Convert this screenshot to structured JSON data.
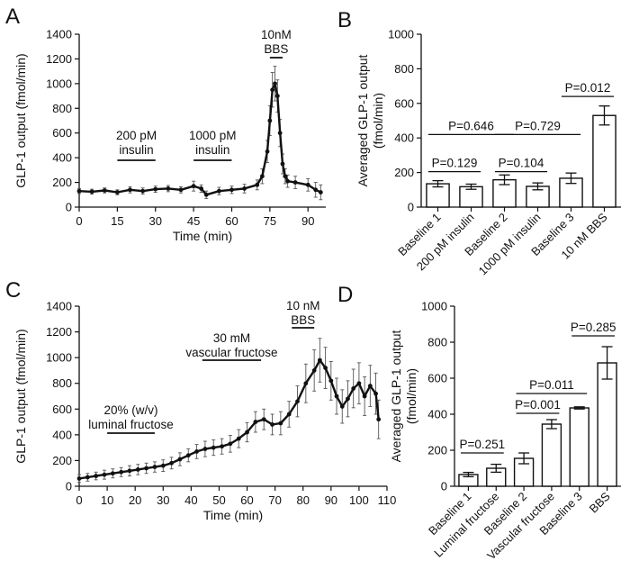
{
  "chart_data": [
    {
      "panel": "A",
      "type": "line",
      "xlabel": "Time (min)",
      "ylabel": "GLP-1 output (fmol/min)",
      "xlim": [
        0,
        97
      ],
      "ylim": [
        0,
        1400
      ],
      "xticks": [
        0,
        15,
        30,
        45,
        60,
        75,
        90
      ],
      "yticks": [
        0,
        200,
        400,
        600,
        800,
        1000,
        1200,
        1400
      ],
      "annotations": [
        {
          "lines": [
            "200 pM",
            "insulin"
          ],
          "x_range": [
            15,
            30
          ]
        },
        {
          "lines": [
            "1000 pM",
            "insulin"
          ],
          "x_range": [
            45,
            60
          ]
        },
        {
          "lines": [
            "10nM",
            "BBS"
          ],
          "x_range": [
            75,
            80
          ]
        }
      ],
      "series": [
        {
          "x": [
            0,
            5,
            10,
            15,
            20,
            25,
            30,
            35,
            40,
            45,
            48,
            50,
            55,
            60,
            65,
            70,
            72,
            74,
            75,
            76,
            77,
            78,
            79,
            80,
            81,
            82,
            85,
            90,
            93,
            95
          ],
          "y": [
            130,
            125,
            135,
            120,
            140,
            130,
            145,
            150,
            140,
            170,
            150,
            100,
            130,
            140,
            150,
            180,
            250,
            450,
            700,
            950,
            1000,
            900,
            600,
            350,
            250,
            210,
            200,
            180,
            140,
            120
          ],
          "error": [
            20,
            20,
            20,
            20,
            25,
            25,
            25,
            25,
            25,
            40,
            30,
            30,
            30,
            30,
            35,
            40,
            60,
            90,
            120,
            140,
            140,
            130,
            110,
            80,
            60,
            50,
            50,
            50,
            60,
            60
          ]
        }
      ]
    },
    {
      "panel": "B",
      "type": "bar",
      "ylabel": "Averaged GLP-1 output (fmol/min)",
      "ylim": [
        0,
        1000
      ],
      "yticks": [
        0,
        200,
        400,
        600,
        800,
        1000
      ],
      "categories": [
        "Baseline 1",
        "200 pM insulin",
        "Baseline 2",
        "1000 pM insulin",
        "Baseline 3",
        "10 nM BBS"
      ],
      "values": [
        135,
        118,
        158,
        120,
        167,
        530
      ],
      "errors": [
        18,
        15,
        28,
        20,
        30,
        55
      ],
      "comparisons": [
        {
          "label": "P=0.129",
          "from": 0,
          "to": 1,
          "y": 205
        },
        {
          "label": "P=0.646",
          "from": 0,
          "to": 2,
          "y": 420
        },
        {
          "label": "P=0.104",
          "from": 2,
          "to": 3,
          "y": 205
        },
        {
          "label": "P=0.729",
          "from": 2,
          "to": 4,
          "y": 420
        },
        {
          "label": "P=0.012",
          "from": 4,
          "to": 5,
          "y": 640
        }
      ]
    },
    {
      "panel": "C",
      "type": "line",
      "xlabel": "Time (min)",
      "ylabel": "GLP-1 output (fmol/min)",
      "xlim": [
        0,
        110
      ],
      "ylim": [
        0,
        1400
      ],
      "xticks": [
        0,
        10,
        20,
        30,
        40,
        50,
        60,
        70,
        80,
        90,
        100,
        110
      ],
      "yticks": [
        0,
        200,
        400,
        600,
        800,
        1000,
        1200,
        1400
      ],
      "annotations": [
        {
          "lines": [
            "20% (w/v)",
            "luminal fructose"
          ],
          "x_range": [
            10,
            27
          ]
        },
        {
          "lines": [
            "30 mM",
            "vascular fructose"
          ],
          "x_range": [
            44,
            65
          ]
        },
        {
          "lines": [
            "10 nM",
            "BBS"
          ],
          "x_range": [
            76,
            84
          ]
        }
      ],
      "series": [
        {
          "x": [
            0,
            3,
            6,
            9,
            12,
            15,
            18,
            21,
            24,
            27,
            30,
            33,
            36,
            39,
            42,
            45,
            48,
            51,
            54,
            57,
            60,
            63,
            66,
            69,
            72,
            75,
            78,
            81,
            84,
            86,
            88,
            90,
            92,
            94,
            96,
            98,
            100,
            102,
            104,
            106,
            107
          ],
          "y": [
            60,
            70,
            80,
            90,
            100,
            110,
            120,
            130,
            140,
            150,
            160,
            180,
            210,
            240,
            270,
            290,
            300,
            310,
            330,
            370,
            420,
            500,
            520,
            480,
            490,
            560,
            660,
            800,
            900,
            980,
            920,
            820,
            700,
            620,
            680,
            760,
            800,
            700,
            780,
            720,
            520
          ],
          "error": [
            30,
            30,
            30,
            35,
            35,
            35,
            40,
            40,
            40,
            40,
            45,
            45,
            50,
            50,
            55,
            60,
            60,
            60,
            65,
            70,
            75,
            80,
            80,
            80,
            90,
            100,
            120,
            150,
            160,
            170,
            160,
            150,
            140,
            130,
            140,
            150,
            160,
            150,
            160,
            160,
            150
          ]
        }
      ]
    },
    {
      "panel": "D",
      "type": "bar",
      "ylabel": "Averaged GLP-1 output (fmol/min)",
      "ylim": [
        0,
        1000
      ],
      "yticks": [
        0,
        200,
        400,
        600,
        800,
        1000
      ],
      "categories": [
        "Baseline 1",
        "Luminal fructose",
        "Baseline 2",
        "Vascular fructose",
        "Baseline 3",
        "BBS"
      ],
      "values": [
        65,
        100,
        155,
        345,
        435,
        685
      ],
      "errors": [
        12,
        22,
        30,
        25,
        6,
        90
      ],
      "comparisons": [
        {
          "label": "P=0.251",
          "from": 0,
          "to": 1,
          "y": 185
        },
        {
          "label": "P=0.001",
          "from": 2,
          "to": 3,
          "y": 405
        },
        {
          "label": "P=0.011",
          "from": 2,
          "to": 4,
          "y": 515
        },
        {
          "label": "P=0.285",
          "from": 4,
          "to": 5,
          "y": 835
        }
      ]
    }
  ]
}
